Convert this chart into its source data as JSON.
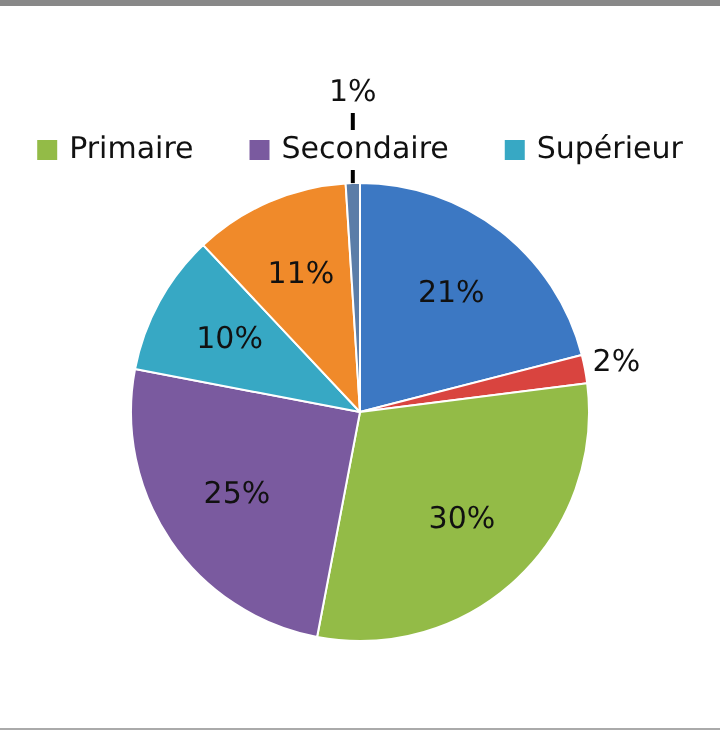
{
  "chart_data": {
    "type": "pie",
    "categories": [
      null,
      null,
      "Primaire",
      "Secondaire",
      "Supérieur",
      null,
      null
    ],
    "values": [
      21,
      2,
      30,
      25,
      10,
      11,
      1
    ],
    "colors": [
      "#3c78c3",
      "#d9443f",
      "#93bb47",
      "#7a5a9f",
      "#37a8c4",
      "#f08a2a",
      "#5b7da8"
    ],
    "value_labels": [
      "21%",
      "2%",
      "30%",
      "25%",
      "10%",
      "11%",
      "1%"
    ],
    "legend": "top"
  }
}
